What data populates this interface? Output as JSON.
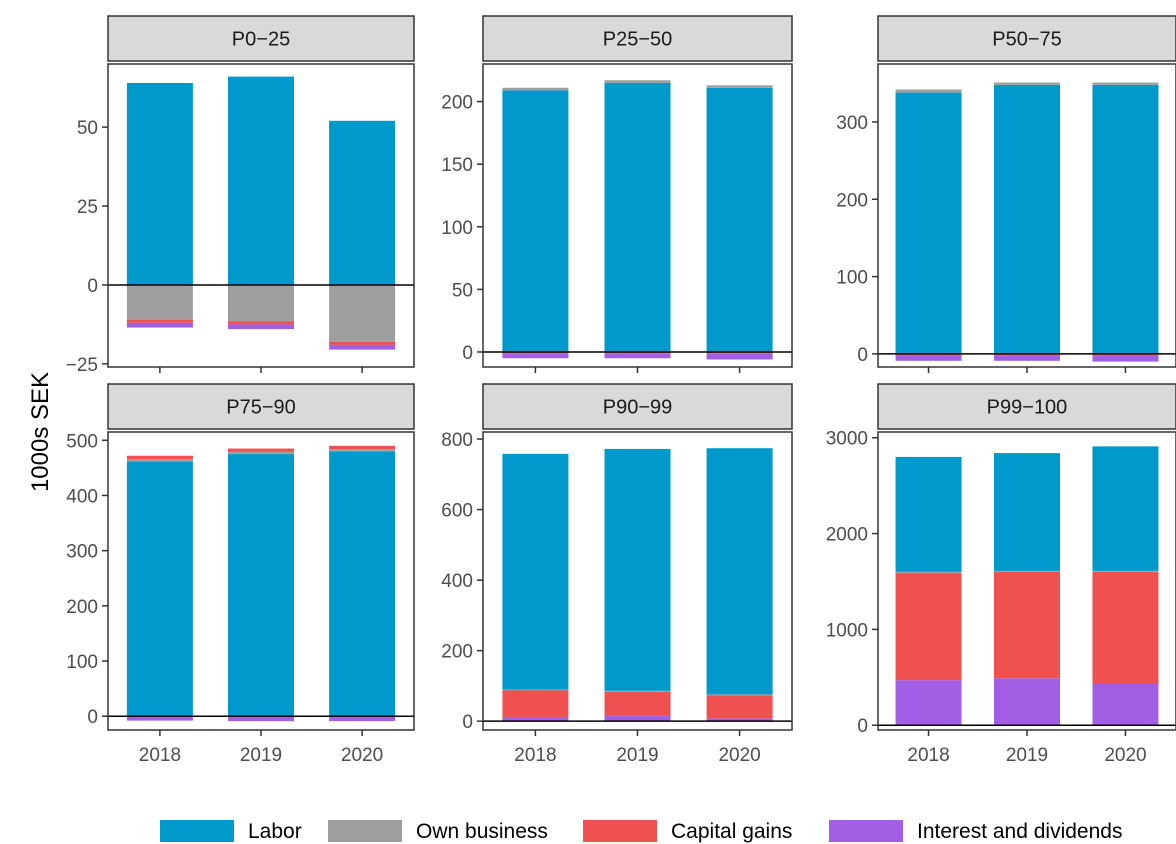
{
  "colors": {
    "Labor": "#0099cc",
    "Own business": "#9e9e9e",
    "Capital gains": "#ef5050",
    "Interest and dividends": "#a35ee6",
    "strip_bg": "#d9d9d9",
    "axis": "#333333"
  },
  "chart_data": {
    "type": "bar",
    "stacked": true,
    "ylabel": "1000s SEK",
    "xlabel": "",
    "categories": [
      "2018",
      "2019",
      "2020"
    ],
    "legend_position": "bottom",
    "legend": [
      "Labor",
      "Own business",
      "Capital gains",
      "Interest and dividends"
    ],
    "facets": [
      {
        "title": "P0−25",
        "ylim": [
          -26,
          70
        ],
        "yticks": [
          -25,
          0,
          25,
          50
        ],
        "ytick_labels": [
          "−25",
          "0",
          "25",
          "50"
        ],
        "series": [
          {
            "name": "Labor",
            "values": [
              64,
              66,
              52
            ]
          },
          {
            "name": "Own business",
            "values": [
              -11,
              -11.5,
              -18
            ]
          },
          {
            "name": "Capital gains",
            "values": [
              -1,
              -1,
              -1
            ]
          },
          {
            "name": "Interest and dividends",
            "values": [
              -1.5,
              -1.5,
              -1.5
            ]
          }
        ]
      },
      {
        "title": "P25−50",
        "ylim": [
          -12,
          230
        ],
        "yticks": [
          0,
          50,
          100,
          150,
          200
        ],
        "ytick_labels": [
          "0",
          "50",
          "100",
          "150",
          "200"
        ],
        "series": [
          {
            "name": "Labor",
            "values": [
              209,
              215,
              211
            ]
          },
          {
            "name": "Own business",
            "values": [
              2,
              2,
              2
            ]
          },
          {
            "name": "Capital gains",
            "values": [
              -1,
              -1,
              -1
            ]
          },
          {
            "name": "Interest and dividends",
            "values": [
              -4,
              -4,
              -5
            ]
          }
        ]
      },
      {
        "title": "P50−75",
        "ylim": [
          -17,
          375
        ],
        "yticks": [
          0,
          100,
          200,
          300
        ],
        "ytick_labels": [
          "0",
          "100",
          "200",
          "300"
        ],
        "series": [
          {
            "name": "Labor",
            "values": [
              338,
              348,
              348
            ]
          },
          {
            "name": "Own business",
            "values": [
              4,
              3,
              3
            ]
          },
          {
            "name": "Capital gains",
            "values": [
              -2,
              -2,
              -2
            ]
          },
          {
            "name": "Interest and dividends",
            "values": [
              -7,
              -7,
              -8
            ]
          }
        ]
      },
      {
        "title": "P75−90",
        "ylim": [
          -25,
          515
        ],
        "yticks": [
          0,
          100,
          200,
          300,
          400,
          500
        ],
        "ytick_labels": [
          "0",
          "100",
          "200",
          "300",
          "400",
          "500"
        ],
        "series": [
          {
            "name": "Labor",
            "values": [
              462,
              475,
              480
            ]
          },
          {
            "name": "Own business",
            "values": [
              4,
              4,
              4
            ]
          },
          {
            "name": "Capital gains",
            "values": [
              6,
              6,
              6
            ]
          },
          {
            "name": "Interest and dividends",
            "values": [
              -8,
              -9,
              -9
            ]
          }
        ]
      },
      {
        "title": "P90−99",
        "ylim": [
          -25,
          820
        ],
        "yticks": [
          0,
          200,
          400,
          600,
          800
        ],
        "ytick_labels": [
          "0",
          "200",
          "400",
          "600",
          "800"
        ],
        "series": [
          {
            "name": "Interest and dividends",
            "values": [
              12,
              15,
              8
            ]
          },
          {
            "name": "Capital gains",
            "values": [
              75,
              68,
              65
            ]
          },
          {
            "name": "Own business",
            "values": [
              3,
              3,
              3
            ]
          },
          {
            "name": "Labor",
            "values": [
              668,
              686,
              698
            ]
          }
        ]
      },
      {
        "title": "P99−100",
        "ylim": [
          -50,
          3060
        ],
        "yticks": [
          0,
          1000,
          2000,
          3000
        ],
        "ytick_labels": [
          "0",
          "1000",
          "2000",
          "3000"
        ],
        "series": [
          {
            "name": "Interest and dividends",
            "values": [
              470,
              490,
              430
            ]
          },
          {
            "name": "Capital gains",
            "values": [
              1120,
              1110,
              1170
            ]
          },
          {
            "name": "Own business",
            "values": [
              10,
              10,
              10
            ]
          },
          {
            "name": "Labor",
            "values": [
              1200,
              1230,
              1300
            ]
          }
        ]
      }
    ]
  }
}
